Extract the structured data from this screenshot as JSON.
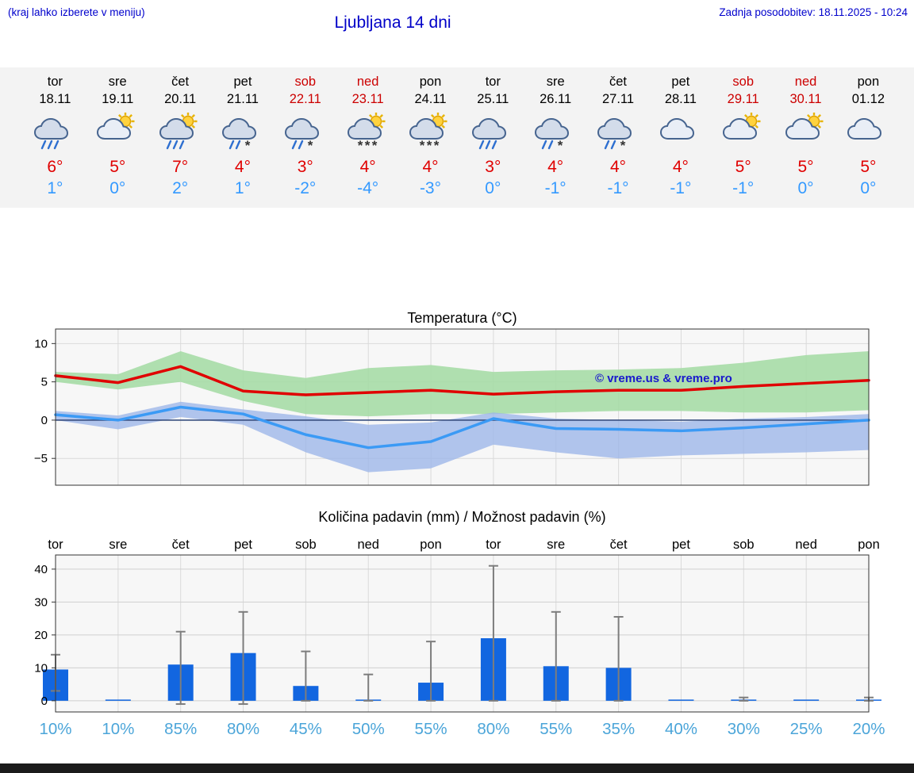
{
  "header": {
    "menu_note": "(kraj lahko izberete v meniju)",
    "title": "Ljubljana 14 dni",
    "last_update": "Zadnja posodobitev: 18.11.2025 - 10:24"
  },
  "colors": {
    "link_blue": "#0000cc",
    "high_temp_red": "#e00000",
    "low_temp_blue": "#3399ff",
    "weekend_red": "#cc0000",
    "precip_bar_blue": "#1266e0",
    "probability_blue": "#4ba5d9",
    "max_band_green": "#a6dca6",
    "min_band_blue": "#9db7e8",
    "zero_line_navy": "#3a5080"
  },
  "forecast_days": [
    {
      "day": "tor",
      "date": "18.11",
      "weekend": false,
      "icon": "rain",
      "high": "6°",
      "low": "1°"
    },
    {
      "day": "sre",
      "date": "19.11",
      "weekend": false,
      "icon": "sun-cloud",
      "high": "5°",
      "low": "0°"
    },
    {
      "day": "čet",
      "date": "20.11",
      "weekend": false,
      "icon": "sun-rain",
      "high": "7°",
      "low": "2°"
    },
    {
      "day": "pet",
      "date": "21.11",
      "weekend": false,
      "icon": "sleet",
      "high": "4°",
      "low": "1°"
    },
    {
      "day": "sob",
      "date": "22.11",
      "weekend": true,
      "icon": "sleet",
      "high": "3°",
      "low": "-2°"
    },
    {
      "day": "ned",
      "date": "23.11",
      "weekend": true,
      "icon": "sun-snow",
      "high": "4°",
      "low": "-4°"
    },
    {
      "day": "pon",
      "date": "24.11",
      "weekend": false,
      "icon": "sun-snow",
      "high": "4°",
      "low": "-3°"
    },
    {
      "day": "tor",
      "date": "25.11",
      "weekend": false,
      "icon": "rain",
      "high": "3°",
      "low": "0°"
    },
    {
      "day": "sre",
      "date": "26.11",
      "weekend": false,
      "icon": "sleet",
      "high": "4°",
      "low": "-1°"
    },
    {
      "day": "čet",
      "date": "27.11",
      "weekend": false,
      "icon": "sleet",
      "high": "4°",
      "low": "-1°"
    },
    {
      "day": "pet",
      "date": "28.11",
      "weekend": false,
      "icon": "cloud",
      "high": "4°",
      "low": "-1°"
    },
    {
      "day": "sob",
      "date": "29.11",
      "weekend": true,
      "icon": "sun-cloud",
      "high": "5°",
      "low": "-1°"
    },
    {
      "day": "ned",
      "date": "30.11",
      "weekend": true,
      "icon": "sun-cloud",
      "high": "5°",
      "low": "0°"
    },
    {
      "day": "pon",
      "date": "01.12",
      "weekend": false,
      "icon": "cloud",
      "high": "5°",
      "low": "0°"
    }
  ],
  "chart_data": [
    {
      "type": "line",
      "title": "Temperatura (°C)",
      "watermark": "© vreme.us & vreme.pro",
      "x_days": [
        "tor 18.11",
        "sre 19.11",
        "čet 20.11",
        "pet 21.11",
        "sob 22.11",
        "ned 23.11",
        "pon 24.11",
        "tor 25.11",
        "sre 26.11",
        "čet 27.11",
        "pet 28.11",
        "sob 29.11",
        "ned 30.11",
        "pon 01.12"
      ],
      "ylim": [
        -8.5,
        11.9
      ],
      "yticks": [
        10,
        5,
        0,
        -5
      ],
      "grid": true,
      "series": [
        {
          "name": "max-temp",
          "color": "#e00000",
          "width": 3.5,
          "values": [
            5.8,
            4.9,
            7.0,
            3.8,
            3.3,
            3.6,
            3.9,
            3.4,
            3.7,
            3.9,
            3.9,
            4.4,
            4.8,
            5.2
          ]
        },
        {
          "name": "min-temp",
          "color": "#3b9af5",
          "width": 3.5,
          "values": [
            0.7,
            0.0,
            1.7,
            0.8,
            -1.9,
            -3.6,
            -2.8,
            0.2,
            -1.1,
            -1.2,
            -1.4,
            -1.0,
            -0.5,
            0.0
          ]
        }
      ],
      "bands": [
        {
          "name": "max-temp-range",
          "color": "#a6dca6",
          "opacity": 0.9,
          "upper": [
            6.3,
            6.0,
            9.0,
            6.5,
            5.5,
            6.8,
            7.2,
            6.3,
            6.5,
            6.6,
            6.8,
            7.5,
            8.5,
            9.0
          ],
          "lower": [
            5.0,
            4.0,
            5.0,
            2.5,
            0.8,
            0.5,
            0.8,
            0.8,
            1.0,
            1.2,
            1.2,
            1.0,
            1.0,
            1.3
          ]
        },
        {
          "name": "min-temp-range",
          "color": "#9db7e8",
          "opacity": 0.8,
          "upper": [
            1.2,
            0.6,
            2.4,
            1.4,
            0.5,
            -0.6,
            -0.3,
            1.0,
            0.2,
            0.0,
            -0.2,
            0.2,
            0.4,
            0.8
          ],
          "lower": [
            0.0,
            -1.2,
            0.4,
            -0.6,
            -4.2,
            -6.8,
            -6.3,
            -3.2,
            -4.2,
            -5.0,
            -4.6,
            -4.4,
            -4.2,
            -3.9
          ]
        }
      ]
    },
    {
      "type": "bar",
      "title": "Količina padavin (mm) / Možnost padavin (%)",
      "categories": [
        "tor",
        "sre",
        "čet",
        "pet",
        "sob",
        "ned",
        "pon",
        "tor",
        "sre",
        "čet",
        "pet",
        "sob",
        "ned",
        "pon"
      ],
      "values": [
        9.5,
        0.1,
        11.0,
        14.5,
        4.5,
        0.3,
        5.5,
        19.0,
        10.5,
        10.0,
        0.1,
        0.3,
        0.1,
        0.3
      ],
      "whisker_high": [
        14,
        0.5,
        21,
        27,
        15,
        8,
        18,
        41,
        27,
        25.5,
        0.5,
        1,
        0.5,
        1
      ],
      "whisker_low": [
        3,
        0,
        -1,
        -1,
        0,
        0,
        0,
        0,
        0,
        0,
        0,
        0,
        0,
        0
      ],
      "probabilities": [
        "10%",
        "10%",
        "85%",
        "80%",
        "45%",
        "50%",
        "55%",
        "80%",
        "55%",
        "35%",
        "40%",
        "30%",
        "25%",
        "20%"
      ],
      "yticks": [
        0,
        10,
        20,
        30,
        40
      ],
      "ylim": [
        -3.4,
        44.3
      ],
      "grid": true
    }
  ]
}
